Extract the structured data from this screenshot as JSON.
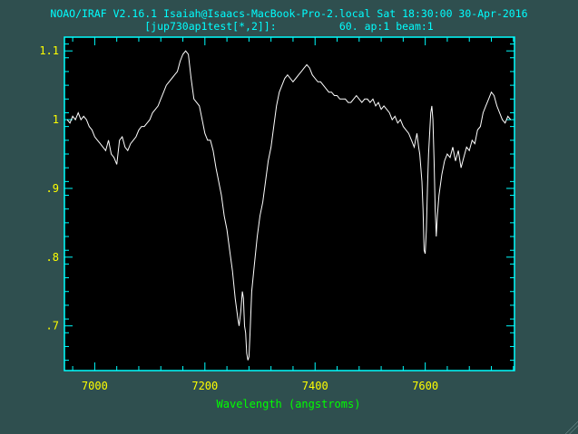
{
  "header": {
    "line1": "NOAO/IRAF V2.16.1 Isaiah@Isaacs-MacBook-Pro-2.local Sat 18:30:00 30-Apr-2016",
    "line2": "[jup730ap1test[*,2]]:          60. ap:1 beam:1"
  },
  "colors": {
    "background": "#2f4f4f",
    "frame": "#00ffff",
    "plot_bg": "#000000",
    "trace": "#ffffff",
    "title_text": "#00ffff",
    "y_ticks": "#ffff00",
    "x_ticks": "#ffff00",
    "x_label": "#00ff00"
  },
  "chart_data": {
    "type": "line",
    "title": "",
    "xlabel": "Wavelength (angstroms)",
    "ylabel": "",
    "xlim": [
      6945,
      7762
    ],
    "ylim": [
      0.635,
      1.12
    ],
    "x_ticks": [
      7000,
      7200,
      7400,
      7600
    ],
    "x_tick_labels": [
      "7000",
      "7200",
      "7400",
      "7600"
    ],
    "y_ticks": [
      0.7,
      0.8,
      0.9,
      1.0,
      1.1
    ],
    "y_tick_labels": [
      ".7",
      ".8",
      ".9",
      "1",
      "1.1"
    ],
    "grid": false,
    "series": [
      {
        "x": [
          6950,
          6955,
          6960,
          6965,
          6970,
          6975,
          6980,
          6985,
          6990,
          6995,
          7000,
          7005,
          7010,
          7015,
          7020,
          7025,
          7030,
          7035,
          7040,
          7045,
          7050,
          7055,
          7060,
          7065,
          7070,
          7075,
          7080,
          7085,
          7090,
          7095,
          7100,
          7105,
          7110,
          7115,
          7120,
          7125,
          7130,
          7135,
          7140,
          7145,
          7150,
          7155,
          7160,
          7165,
          7170,
          7175,
          7180,
          7185,
          7190,
          7195,
          7200,
          7205,
          7210,
          7215,
          7220,
          7225,
          7230,
          7235,
          7240,
          7245,
          7250,
          7255,
          7260,
          7262,
          7265,
          7268,
          7270,
          7272,
          7274,
          7276,
          7278,
          7280,
          7282,
          7285,
          7290,
          7295,
          7300,
          7305,
          7310,
          7315,
          7320,
          7325,
          7330,
          7335,
          7340,
          7345,
          7350,
          7355,
          7360,
          7365,
          7370,
          7375,
          7380,
          7385,
          7390,
          7395,
          7400,
          7405,
          7410,
          7415,
          7420,
          7425,
          7430,
          7435,
          7440,
          7445,
          7450,
          7455,
          7460,
          7465,
          7470,
          7475,
          7480,
          7485,
          7490,
          7495,
          7500,
          7505,
          7510,
          7515,
          7520,
          7525,
          7530,
          7535,
          7540,
          7545,
          7550,
          7555,
          7560,
          7565,
          7570,
          7575,
          7580,
          7585,
          7588,
          7590,
          7592,
          7594,
          7596,
          7598,
          7600,
          7602,
          7604,
          7606,
          7608,
          7610,
          7612,
          7614,
          7616,
          7618,
          7620,
          7622,
          7625,
          7630,
          7635,
          7640,
          7645,
          7650,
          7655,
          7660,
          7665,
          7670,
          7675,
          7680,
          7685,
          7690,
          7695,
          7700,
          7705,
          7710,
          7715,
          7720,
          7725,
          7730,
          7735,
          7740,
          7745,
          7750,
          7755
        ],
        "values": [
          1.0,
          0.995,
          1.005,
          1.0,
          1.01,
          1.0,
          1.005,
          1.0,
          0.99,
          0.985,
          0.975,
          0.97,
          0.965,
          0.96,
          0.955,
          0.97,
          0.95,
          0.945,
          0.935,
          0.97,
          0.975,
          0.96,
          0.955,
          0.965,
          0.97,
          0.975,
          0.985,
          0.99,
          0.99,
          0.995,
          1.0,
          1.01,
          1.015,
          1.02,
          1.03,
          1.04,
          1.05,
          1.055,
          1.06,
          1.065,
          1.07,
          1.085,
          1.095,
          1.1,
          1.095,
          1.06,
          1.03,
          1.025,
          1.02,
          1.0,
          0.98,
          0.97,
          0.97,
          0.955,
          0.93,
          0.91,
          0.89,
          0.86,
          0.84,
          0.81,
          0.78,
          0.74,
          0.71,
          0.7,
          0.72,
          0.75,
          0.74,
          0.7,
          0.69,
          0.66,
          0.65,
          0.655,
          0.69,
          0.75,
          0.79,
          0.83,
          0.86,
          0.88,
          0.91,
          0.94,
          0.96,
          0.99,
          1.02,
          1.04,
          1.05,
          1.06,
          1.065,
          1.06,
          1.055,
          1.06,
          1.065,
          1.07,
          1.075,
          1.08,
          1.075,
          1.065,
          1.06,
          1.055,
          1.055,
          1.05,
          1.045,
          1.04,
          1.04,
          1.035,
          1.035,
          1.03,
          1.03,
          1.03,
          1.025,
          1.025,
          1.03,
          1.035,
          1.03,
          1.025,
          1.03,
          1.03,
          1.025,
          1.03,
          1.02,
          1.025,
          1.015,
          1.02,
          1.015,
          1.01,
          1.0,
          1.005,
          0.995,
          1.0,
          0.99,
          0.985,
          0.98,
          0.97,
          0.96,
          0.98,
          0.96,
          0.95,
          0.93,
          0.91,
          0.87,
          0.81,
          0.805,
          0.84,
          0.9,
          0.95,
          0.98,
          1.01,
          1.02,
          1.0,
          0.94,
          0.87,
          0.83,
          0.86,
          0.89,
          0.92,
          0.94,
          0.95,
          0.945,
          0.96,
          0.94,
          0.955,
          0.93,
          0.945,
          0.96,
          0.955,
          0.97,
          0.965,
          0.985,
          0.99,
          1.01,
          1.02,
          1.03,
          1.04,
          1.035,
          1.02,
          1.01,
          1.0,
          0.995,
          1.005,
          1.0
        ]
      }
    ]
  }
}
